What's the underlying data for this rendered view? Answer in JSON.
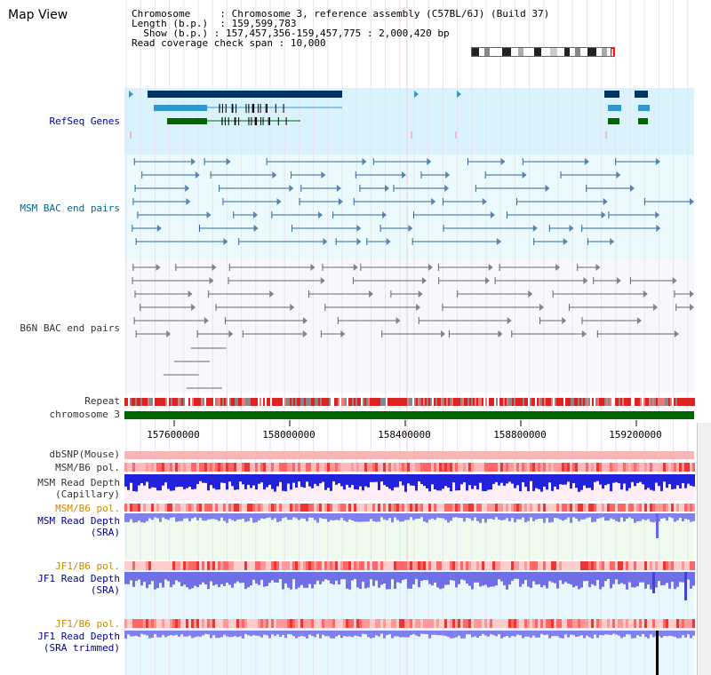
{
  "title": "Map View",
  "info": {
    "chromosome_label": "Chromosome",
    "chromosome_value": "Chromosome 3, reference assembly (C57BL/6J) (Build 37)",
    "length_label": "Length (b.p.)",
    "length_value": "159,599,783",
    "show_label": "Show (b.p.)",
    "show_value": "157,457,356-159,457,775 : 2,000,420 bp",
    "coverage_label": "Read coverage check span",
    "coverage_value": "10,000"
  },
  "tracks": {
    "refseq": "RefSeq Genes",
    "msm_bac": "MSM BAC end pairs",
    "b6n_bac": "B6N BAC end pairs",
    "repeat": "Repeat",
    "chromosome": "chromosome 3",
    "dbsnp": "dbSNP(Mouse)",
    "msm_b6_pol_1": "MSM/B6 pol.",
    "msm_read_depth_cap_1": "MSM Read Depth",
    "msm_read_depth_cap_2": "(Capillary)",
    "msm_b6_pol_2": "MSM/B6 pol.",
    "msm_read_depth_sra_1": "MSM Read Depth",
    "msm_read_depth_sra_2": "(SRA)",
    "jf1_b6_pol_1": "JF1/B6 pol.",
    "jf1_read_depth_sra_1": "JF1 Read Depth",
    "jf1_read_depth_sra_2": "(SRA)",
    "jf1_b6_pol_2": "JF1/B6 pol.",
    "jf1_read_depth_trim_1": "JF1 Read Depth",
    "jf1_read_depth_trim_2": "(SRA trimmed)"
  },
  "axis": {
    "ticks": [
      "157600000",
      "158000000",
      "158400000",
      "158800000",
      "159200000"
    ]
  },
  "colors": {
    "refseq_dark": "#003366",
    "refseq_mid": "#3399cc",
    "refseq_green": "#006600",
    "msm_bac": "#336699",
    "b6n_bac": "#666666",
    "label_blue": "#000099",
    "label_teal": "#006699",
    "label_orange": "#cc8800",
    "depth_blue": "#2222dd",
    "depth_light": "#8080ee",
    "chromosome_green": "#006600"
  }
}
